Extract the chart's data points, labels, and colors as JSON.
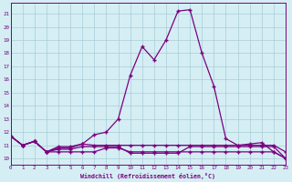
{
  "x": [
    0,
    1,
    2,
    3,
    4,
    5,
    6,
    7,
    8,
    9,
    10,
    11,
    12,
    13,
    14,
    15,
    16,
    17,
    18,
    19,
    20,
    21,
    22,
    23
  ],
  "line1": [
    11.7,
    11.0,
    11.3,
    10.5,
    10.8,
    10.8,
    11.1,
    11.8,
    12.0,
    13.0,
    16.3,
    18.5,
    17.5,
    19.0,
    21.2,
    21.3,
    18.0,
    15.5,
    11.5,
    11.0,
    11.1,
    11.2,
    10.5,
    10.0
  ],
  "line2": [
    11.7,
    11.0,
    11.3,
    10.5,
    10.9,
    10.9,
    11.1,
    11.0,
    11.0,
    11.0,
    11.0,
    11.0,
    11.0,
    11.0,
    11.0,
    11.0,
    11.0,
    11.0,
    11.0,
    11.0,
    11.0,
    11.0,
    11.0,
    10.5
  ],
  "line3": [
    11.7,
    11.0,
    11.3,
    10.5,
    10.5,
    10.5,
    10.5,
    10.5,
    10.8,
    10.8,
    10.5,
    10.5,
    10.5,
    10.5,
    10.5,
    10.5,
    10.5,
    10.5,
    10.5,
    10.5,
    10.5,
    10.5,
    10.5,
    10.0
  ],
  "line4": [
    11.7,
    11.0,
    11.3,
    10.5,
    10.7,
    10.7,
    10.9,
    10.9,
    10.9,
    10.9,
    10.4,
    10.4,
    10.4,
    10.4,
    10.4,
    10.9,
    10.9,
    10.9,
    10.9,
    10.9,
    10.9,
    10.9,
    10.9,
    10.0
  ],
  "line_color": "#7b0080",
  "bg_color": "#d4eef4",
  "grid_color": "#aaccd6",
  "xlabel": "Windchill (Refroidissement éolien,°C)",
  "ylim": [
    9.5,
    21.8
  ],
  "xlim": [
    0,
    23
  ],
  "yticks": [
    10,
    11,
    12,
    13,
    14,
    15,
    16,
    17,
    18,
    19,
    20,
    21
  ],
  "xticks": [
    0,
    1,
    2,
    3,
    4,
    5,
    6,
    7,
    8,
    9,
    10,
    11,
    12,
    13,
    14,
    15,
    16,
    17,
    18,
    19,
    20,
    21,
    22,
    23
  ]
}
